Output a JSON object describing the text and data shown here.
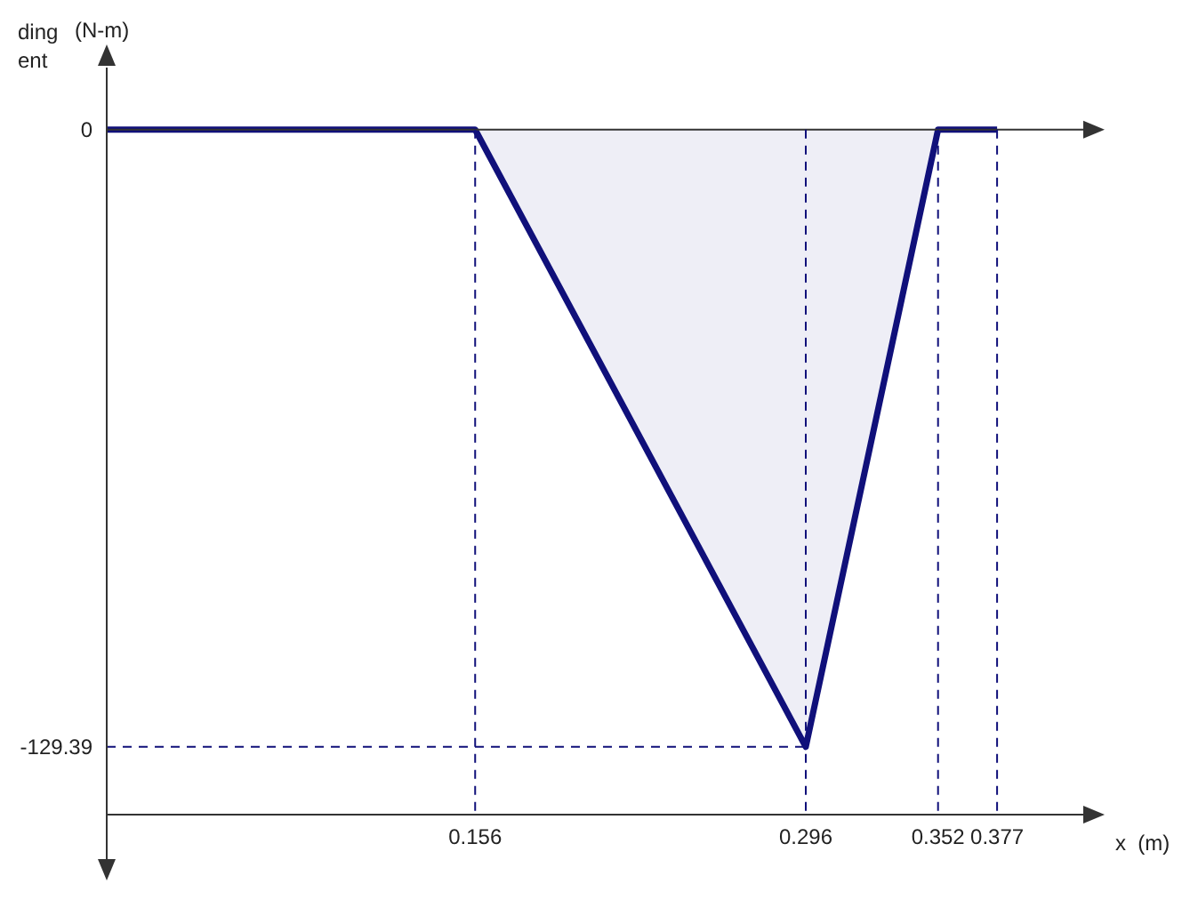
{
  "chart_data": {
    "type": "area",
    "ylabel": "(N-m)",
    "xlabel": "x  (m)",
    "annotations": [
      "ding",
      "ent"
    ],
    "x": [
      0,
      0.156,
      0.296,
      0.352,
      0.377
    ],
    "series": [
      {
        "color": "#10107a",
        "values": [
          0,
          0,
          -129.39,
          0,
          0
        ]
      }
    ],
    "xlim": [
      0,
      0.415
    ],
    "ylim": [
      -143.6,
      13
    ],
    "xticks": [
      0.156,
      0.296,
      0.352,
      0.377
    ],
    "yticks": [
      -129.39,
      0
    ],
    "ref_lines": [
      {
        "axis": "y",
        "value": 0,
        "color": "#333333",
        "line_style": "solid"
      },
      {
        "axis": "x",
        "value": 0.156,
        "color": "#10107a",
        "line_style": "dashed"
      },
      {
        "axis": "x",
        "value": 0.296,
        "color": "#10107a",
        "line_style": "dashed"
      },
      {
        "axis": "x",
        "value": 0.352,
        "color": "#10107a",
        "line_style": "dashed"
      },
      {
        "axis": "x",
        "value": 0.377,
        "color": "#10107a",
        "line_style": "dashed"
      },
      {
        "axis": "y",
        "value": -129.39,
        "color": "#10107a",
        "line_style": "dashed"
      }
    ],
    "grid": false,
    "legend": false
  }
}
